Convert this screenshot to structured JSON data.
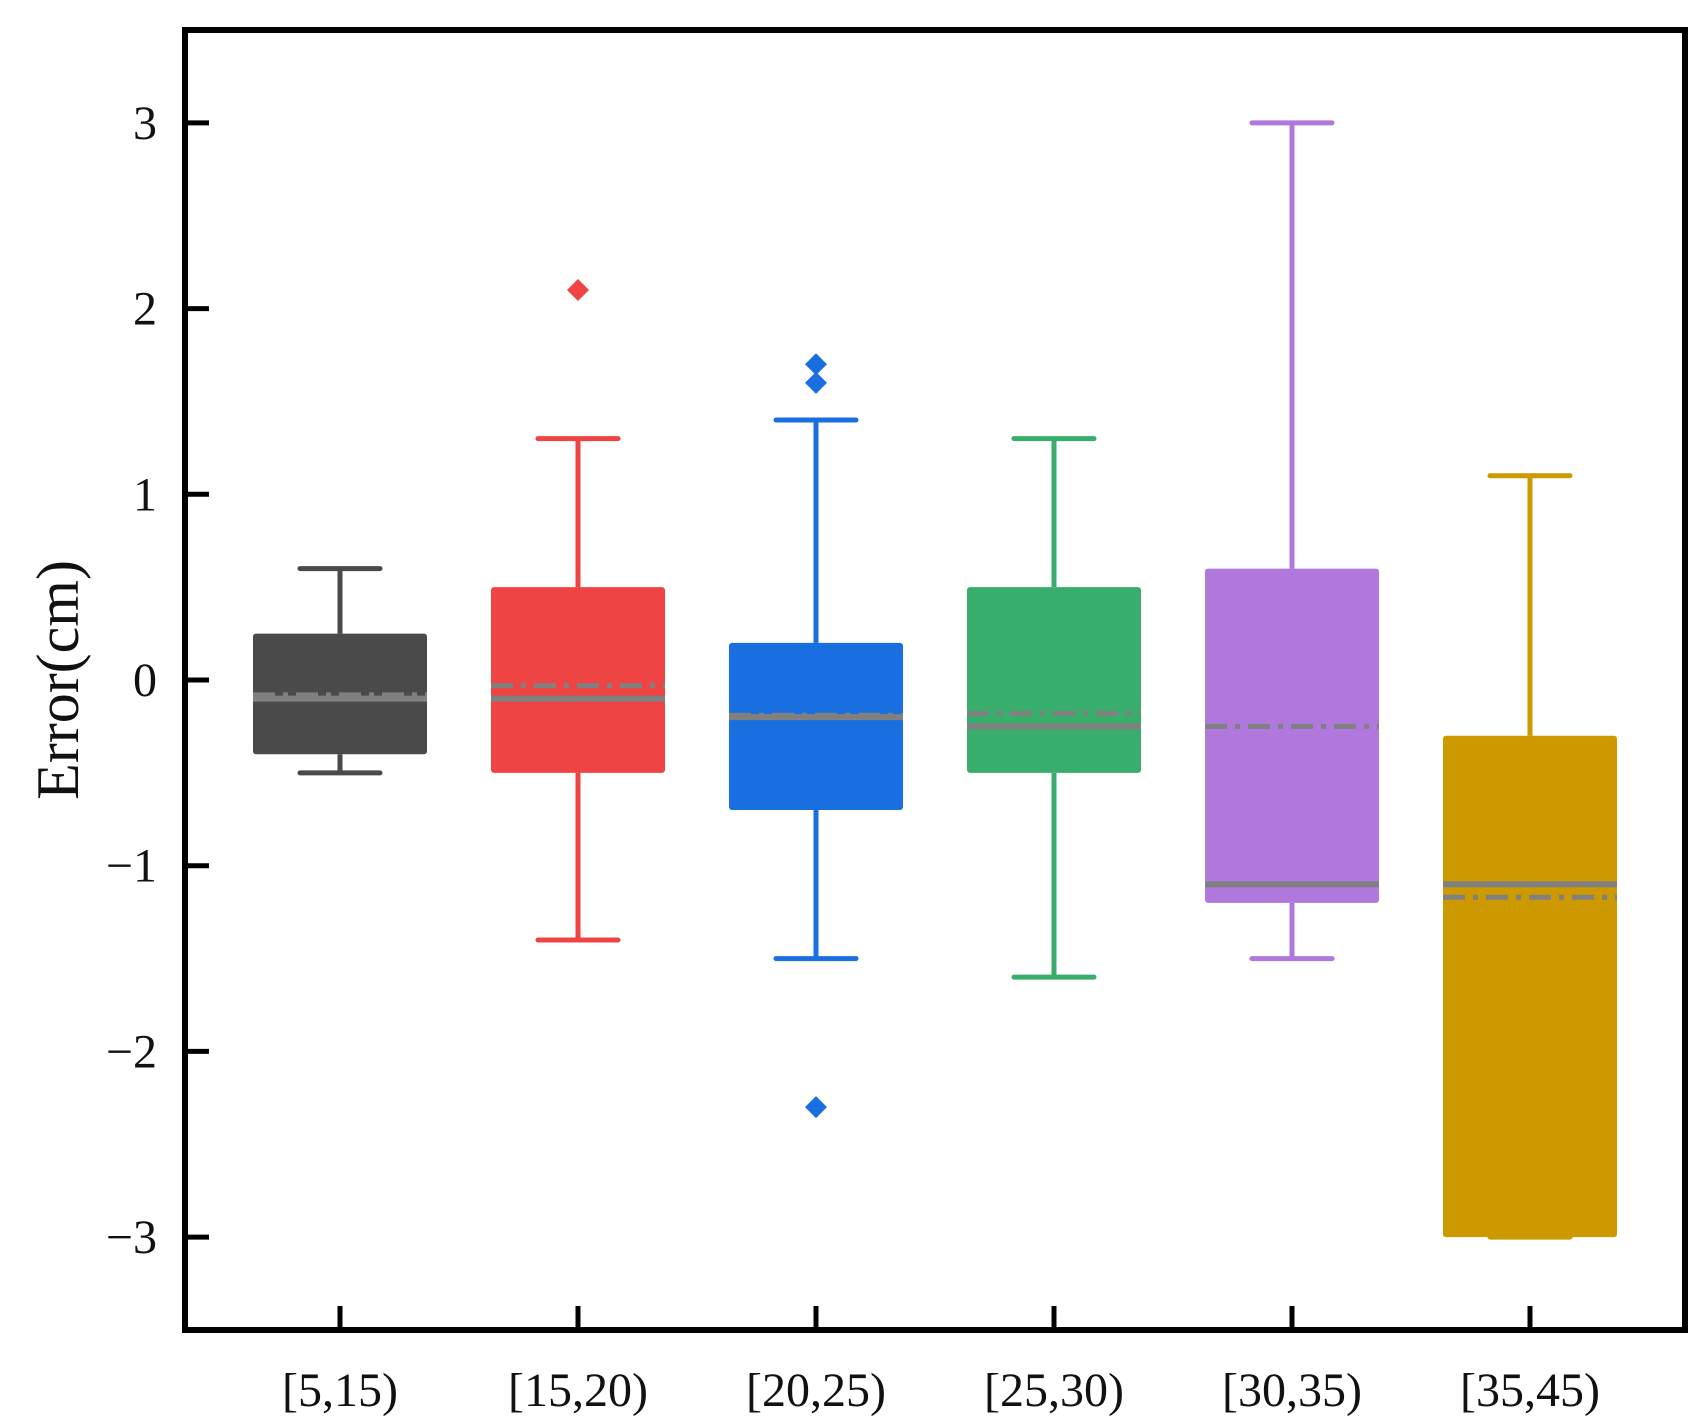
{
  "chart_data": {
    "type": "box",
    "title": "",
    "xlabel": "",
    "ylabel": "Error(cm)",
    "ylim": [
      -3.5,
      3.5
    ],
    "yticks": [
      -3,
      -2,
      -1,
      0,
      1,
      2,
      3
    ],
    "ytick_labels": [
      "−3",
      "−2",
      "−1",
      "0",
      "1",
      "2",
      "3"
    ],
    "categories": [
      "[5,15)",
      "[15,20)",
      "[20,25)",
      "[25,30)",
      "[30,35)",
      "[35,45)"
    ],
    "boxes": [
      {
        "category": "[5,15)",
        "color": "#4a4a4a",
        "whisker_low": -0.5,
        "q1": -0.4,
        "median": -0.1,
        "mean": -0.08,
        "q3": 0.25,
        "whisker_high": 0.6,
        "outliers": []
      },
      {
        "category": "[15,20)",
        "color": "#ef4444",
        "whisker_low": -1.4,
        "q1": -0.5,
        "median": -0.1,
        "mean": -0.03,
        "q3": 0.5,
        "whisker_high": 1.3,
        "outliers": [
          2.1
        ]
      },
      {
        "category": "[20,25)",
        "color": "#1a6fe0",
        "whisker_low": -1.5,
        "q1": -0.7,
        "median": -0.2,
        "mean": -0.19,
        "q3": 0.2,
        "whisker_high": 1.4,
        "outliers": [
          1.7,
          1.6,
          -2.3
        ]
      },
      {
        "category": "[25,30)",
        "color": "#38ad6c",
        "whisker_low": -1.6,
        "q1": -0.5,
        "median": -0.25,
        "mean": -0.18,
        "q3": 0.5,
        "whisker_high": 1.3,
        "outliers": []
      },
      {
        "category": "[30,35)",
        "color": "#b077dd",
        "whisker_low": -1.5,
        "q1": -1.2,
        "median": -1.1,
        "mean": -0.25,
        "q3": 0.6,
        "whisker_high": 3.0,
        "outliers": []
      },
      {
        "category": "[35,45)",
        "color": "#cc9900",
        "whisker_low": -3.0,
        "q1": -3.0,
        "median": -1.1,
        "mean": -1.17,
        "q3": -0.3,
        "whisker_high": 1.1,
        "outliers": []
      }
    ],
    "median_line_color": "#808080",
    "mean_line_color": "#808080",
    "grid": false,
    "legend": "none"
  }
}
